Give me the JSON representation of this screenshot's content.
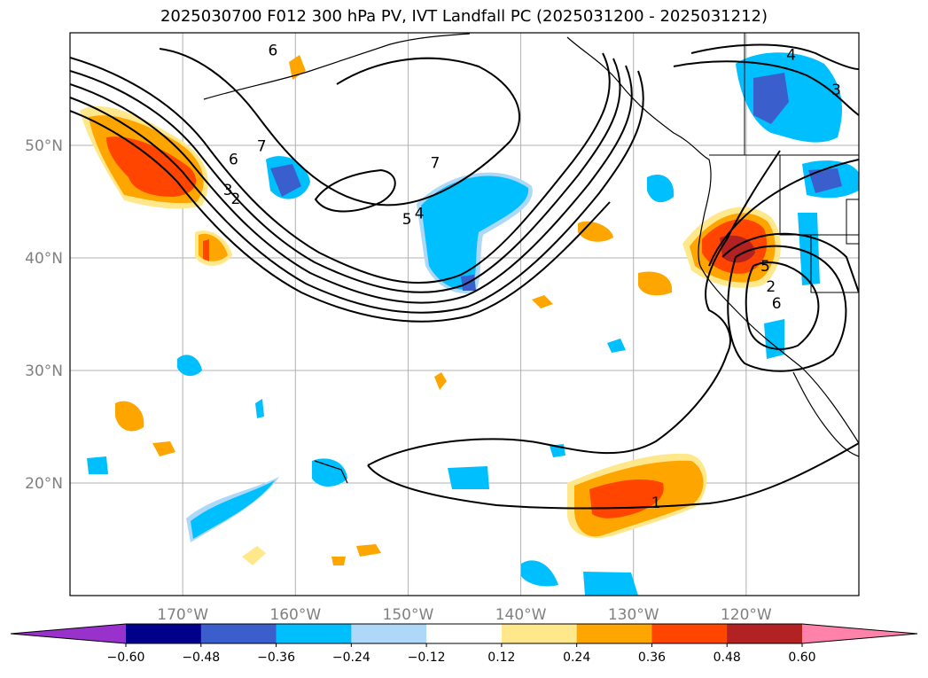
{
  "title": "2025030700 F012 300 hPa PV, IVT Landfall PC (2025031200 - 2025031212)",
  "map": {
    "x_axis": {
      "ticks": [
        {
          "lon": -170,
          "label": "170°W"
        },
        {
          "lon": -160,
          "label": "160°W"
        },
        {
          "lon": -150,
          "label": "150°W"
        },
        {
          "lon": -140,
          "label": "140°W"
        },
        {
          "lon": -130,
          "label": "130°W"
        },
        {
          "lon": -120,
          "label": "120°W"
        }
      ]
    },
    "y_axis": {
      "ticks": [
        {
          "lat": 50,
          "label": "50°N"
        },
        {
          "lat": 40,
          "label": "40°N"
        },
        {
          "lat": 30,
          "label": "30°N"
        },
        {
          "lat": 20,
          "label": "20°N"
        }
      ]
    },
    "extent": {
      "lon_min": -180,
      "lon_max": -110,
      "lat_min": 10,
      "lat_max": 60
    },
    "gridlines": true,
    "contour_labels": [
      {
        "text": "6",
        "lon": -162.0,
        "lat": 58.0
      },
      {
        "text": "7",
        "lon": -163.0,
        "lat": 49.5
      },
      {
        "text": "6",
        "lon": -165.5,
        "lat": 48.3
      },
      {
        "text": "7",
        "lon": -147.6,
        "lat": 48.0
      },
      {
        "text": "3",
        "lon": -166.0,
        "lat": 45.6
      },
      {
        "text": "2",
        "lon": -165.3,
        "lat": 44.8
      },
      {
        "text": "5",
        "lon": -150.1,
        "lat": 43.0
      },
      {
        "text": "4",
        "lon": -149.0,
        "lat": 43.5
      },
      {
        "text": "1",
        "lon": -128.0,
        "lat": 17.8
      },
      {
        "text": "2",
        "lon": -117.8,
        "lat": 37.0
      },
      {
        "text": "6",
        "lon": -117.3,
        "lat": 35.5
      },
      {
        "text": "5",
        "lon": -118.3,
        "lat": 38.8
      },
      {
        "text": "4",
        "lon": -116.0,
        "lat": 57.6
      },
      {
        "text": "3",
        "lon": -112.0,
        "lat": 54.5
      }
    ]
  },
  "colorbar": {
    "tick_labels": [
      "−0.60",
      "−0.48",
      "−0.36",
      "−0.24",
      "−0.12",
      "0.12",
      "0.24",
      "0.36",
      "0.48",
      "0.60"
    ],
    "colors": [
      "#9932cc",
      "#00008b",
      "#3a5fcd",
      "#00bfff",
      "#add8f7",
      "#ffffff",
      "#ffe88c",
      "#ffa500",
      "#ff4500",
      "#b22222",
      "#ff82ab"
    ]
  },
  "colors": {
    "frame": "#000000",
    "gridline": "#b0b0b0",
    "tick_label": "#808080"
  }
}
